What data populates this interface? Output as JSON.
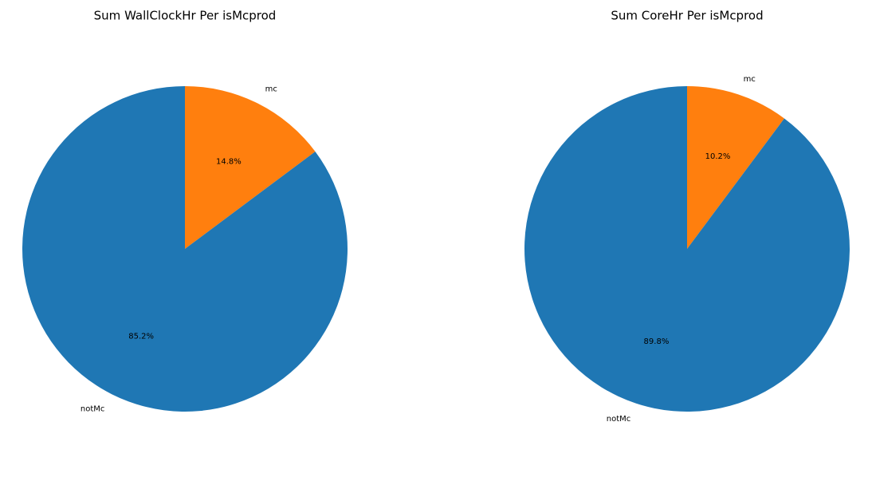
{
  "chart_data": [
    {
      "type": "pie",
      "title": "Sum WallClockHr Per isMcprod",
      "labels": [
        "mc",
        "notMc"
      ],
      "values": [
        14.8,
        85.2
      ],
      "pct_labels": [
        "14.8%",
        "85.2%"
      ],
      "colors": [
        "#ff7f0e",
        "#1f77b4"
      ],
      "start_angle_deg": 90,
      "direction": "clockwise",
      "legend": "none"
    },
    {
      "type": "pie",
      "title": "Sum CoreHr Per isMcprod",
      "labels": [
        "mc",
        "notMc"
      ],
      "values": [
        10.2,
        89.8
      ],
      "pct_labels": [
        "10.2%",
        "89.8%"
      ],
      "colors": [
        "#ff7f0e",
        "#1f77b4"
      ],
      "start_angle_deg": 90,
      "direction": "clockwise",
      "legend": "none"
    }
  ]
}
